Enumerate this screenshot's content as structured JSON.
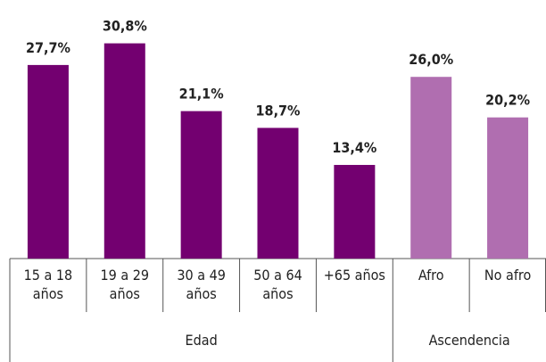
{
  "chart_data": {
    "type": "bar",
    "categories": [
      "15 a 18 años",
      "19 a 29 años",
      "30 a 49 años",
      "50 a 64 años",
      "+65 años",
      "Afro",
      "No afro"
    ],
    "values": [
      27.7,
      30.8,
      21.1,
      18.7,
      13.4,
      26.0,
      20.2
    ],
    "value_labels": [
      "27,7%",
      "30,8%",
      "21,1%",
      "18,7%",
      "13,4%",
      "26,0%",
      "20,2%"
    ],
    "colors": [
      "#730070",
      "#730070",
      "#730070",
      "#730070",
      "#730070",
      "#b06eb0",
      "#b06eb0"
    ],
    "groups": [
      {
        "name": "Edad",
        "size": 5
      },
      {
        "name": "Ascendencia",
        "size": 2
      }
    ],
    "ylim": [
      0,
      37
    ]
  }
}
